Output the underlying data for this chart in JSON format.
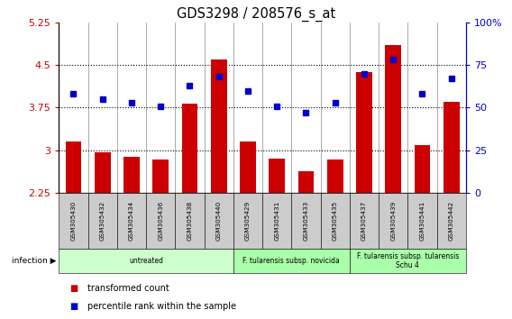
{
  "title": "GDS3298 / 208576_s_at",
  "samples": [
    "GSM305430",
    "GSM305432",
    "GSM305434",
    "GSM305436",
    "GSM305438",
    "GSM305440",
    "GSM305429",
    "GSM305431",
    "GSM305433",
    "GSM305435",
    "GSM305437",
    "GSM305439",
    "GSM305441",
    "GSM305442"
  ],
  "bar_values": [
    3.15,
    2.97,
    2.88,
    2.84,
    3.82,
    4.6,
    3.15,
    2.86,
    2.64,
    2.84,
    4.38,
    4.85,
    3.1,
    3.85
  ],
  "dot_values": [
    58,
    55,
    53,
    51,
    63,
    68,
    60,
    51,
    47,
    53,
    70,
    78,
    58,
    67
  ],
  "ylim_left": [
    2.25,
    5.25
  ],
  "ylim_right": [
    0,
    100
  ],
  "yticks_left": [
    2.25,
    3.0,
    3.75,
    4.5,
    5.25
  ],
  "yticks_right": [
    0,
    25,
    50,
    75,
    100
  ],
  "ytick_labels_left": [
    "2.25",
    "3",
    "3.75",
    "4.5",
    "5.25"
  ],
  "ytick_labels_right": [
    "0",
    "25",
    "50",
    "75",
    "100%"
  ],
  "hlines": [
    3.0,
    3.75,
    4.5
  ],
  "bar_color": "#cc0000",
  "dot_color": "#0000cc",
  "bar_width": 0.55,
  "groups": [
    {
      "label": "untreated",
      "start": 0,
      "end": 5,
      "color": "#ccffcc"
    },
    {
      "label": "F. tularensis subsp. novicida",
      "start": 6,
      "end": 9,
      "color": "#aaffaa"
    },
    {
      "label": "F. tularensis subsp. tularensis\nSchu 4",
      "start": 10,
      "end": 13,
      "color": "#aaffaa"
    }
  ],
  "legend_items": [
    {
      "label": "transformed count",
      "color": "#cc0000"
    },
    {
      "label": "percentile rank within the sample",
      "color": "#0000cc"
    }
  ],
  "background_color": "#ffffff",
  "plot_bg_color": "#ffffff",
  "ylabel_left_color": "#cc0000",
  "ylabel_right_color": "#0000cc",
  "sample_box_color": "#cccccc",
  "spine_color": "#000000",
  "hline_color": "#000000",
  "sep_color": "#888888"
}
